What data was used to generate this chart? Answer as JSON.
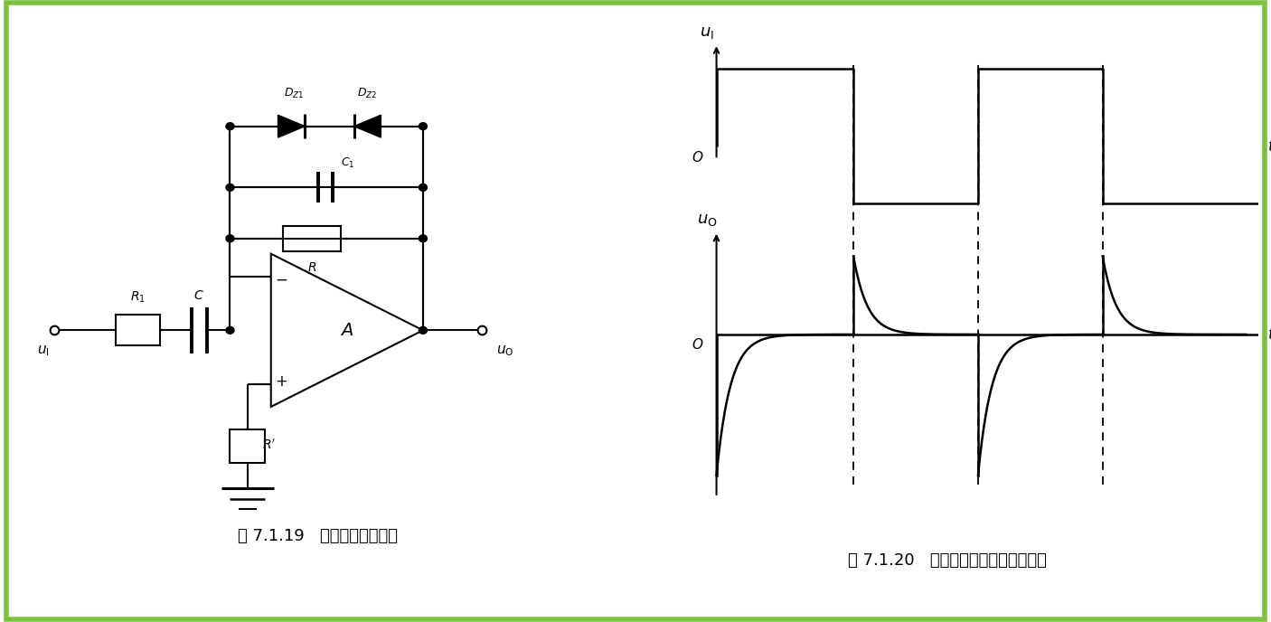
{
  "bg_color": "#ffffff",
  "border_color": "#7dc242",
  "border_linewidth": 4,
  "fig_caption_left": "图 7.1.19   实用微分运算电路",
  "fig_caption_right": "图 7.1.20   微分电路输入输出波形分析"
}
